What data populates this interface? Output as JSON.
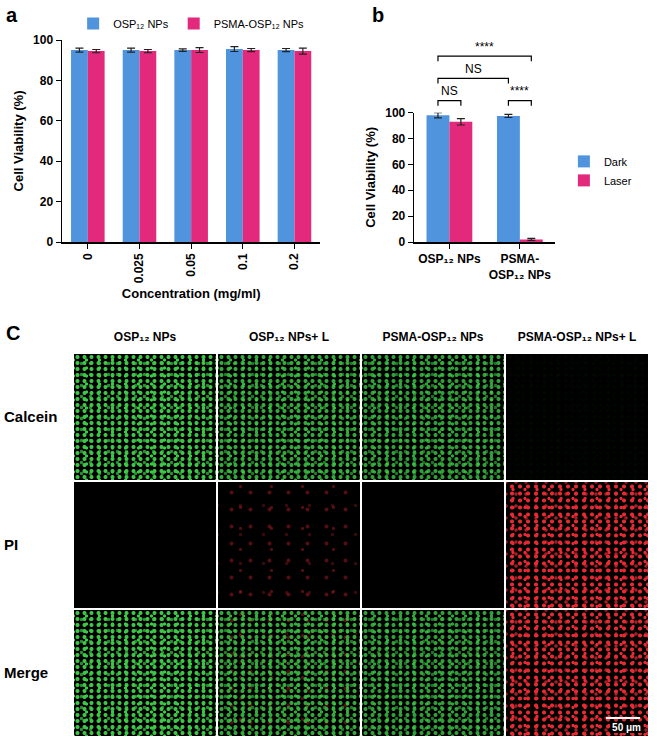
{
  "chart_data": [
    {
      "panel": "a",
      "type": "bar",
      "x_label": "Concentration (mg/ml)",
      "y_label": "Cell Viability (%)",
      "categories": [
        "0",
        "0.025",
        "0.05",
        "0.1",
        "0.2"
      ],
      "series": [
        {
          "name": "OSP₁₂ NPs",
          "color": "#4f94dc",
          "values": [
            95,
            95,
            95,
            95.5,
            95
          ],
          "errors": [
            1,
            1,
            0.6,
            1.2,
            0.8
          ]
        },
        {
          "name": "PSMA-OSP₁₂ NPs",
          "color": "#e2297b",
          "values": [
            94.5,
            94.5,
            95,
            95,
            94.5
          ],
          "errors": [
            0.8,
            0.8,
            1.2,
            0.8,
            1.5
          ]
        }
      ],
      "ylim": [
        0,
        100
      ],
      "yticks": [
        0,
        20,
        40,
        60,
        80,
        100
      ],
      "legend": "top"
    },
    {
      "panel": "b",
      "type": "bar",
      "y_label": "Cell Viability (%)",
      "categories": [
        "OSP₁₂ NPs",
        "PSMA-OSP₁₂ NPs"
      ],
      "series": [
        {
          "name": "Dark",
          "color": "#4f94dc",
          "values": [
            98,
            97.5
          ],
          "errors": [
            2,
            1.2
          ]
        },
        {
          "name": "Laser",
          "color": "#e2297b",
          "values": [
            93,
            2
          ],
          "errors": [
            2.5,
            0.8
          ]
        }
      ],
      "ylim": [
        0,
        100
      ],
      "yticks": [
        0,
        20,
        40,
        60,
        80,
        100
      ],
      "legend": "right",
      "comparisons": [
        {
          "from": {
            "category": "OSP₁₂ NPs",
            "series": "Dark"
          },
          "to": {
            "category": "OSP₁₂ NPs",
            "series": "Laser"
          },
          "label": "NS"
        },
        {
          "from": {
            "category": "PSMA-OSP₁₂ NPs",
            "series": "Dark"
          },
          "to": {
            "category": "PSMA-OSP₁₂ NPs",
            "series": "Laser"
          },
          "label": "****"
        },
        {
          "from": {
            "category": "OSP₁₂ NPs",
            "series": "Dark"
          },
          "to": {
            "category": "PSMA-OSP₁₂ NPs",
            "series": "Dark"
          },
          "label": "NS"
        },
        {
          "from": {
            "category": "OSP₁₂ NPs",
            "series": "Dark"
          },
          "to": {
            "category": "PSMA-OSP₁₂ NPs",
            "series": "Laser"
          },
          "label": "****"
        }
      ]
    }
  ],
  "image_grid": {
    "panel": "C",
    "columns": [
      "OSP₁₂ NPs",
      "OSP₁₂ NPs+ L",
      "PSMA-OSP₁₂ NPs",
      "PSMA-OSP₁₂ NPs+ L"
    ],
    "rows": [
      "Calcein",
      "PI",
      "Merge"
    ],
    "scale_bar": "50 μm"
  }
}
